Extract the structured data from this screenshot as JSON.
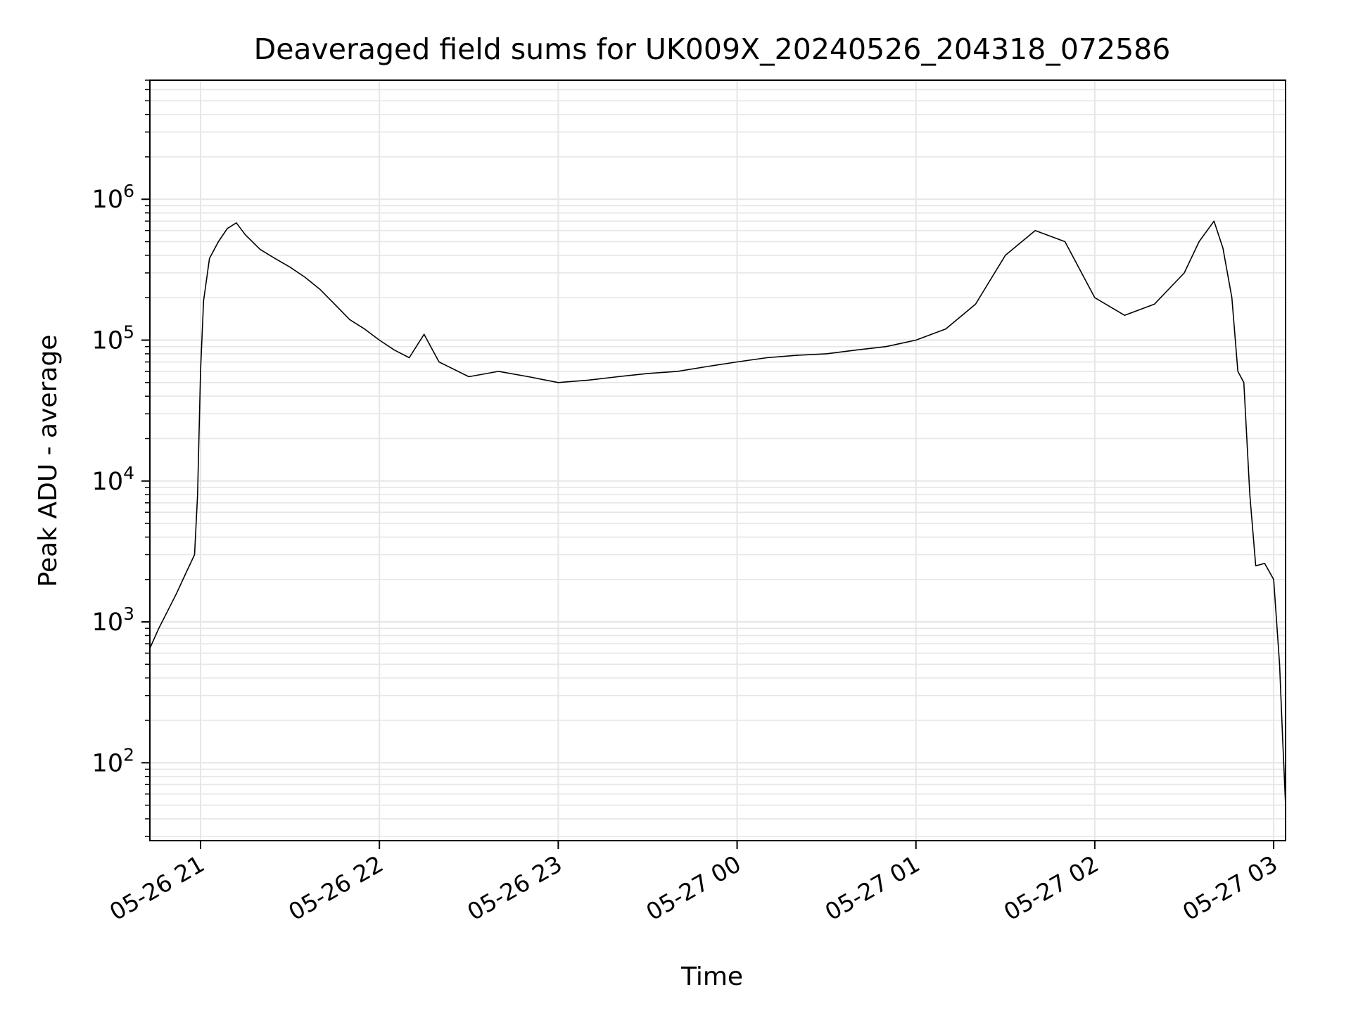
{
  "chart_data": {
    "type": "line",
    "title": "Deaveraged field sums for UK009X_20240526_204318_072586",
    "xlabel": "Time",
    "ylabel": "Peak ADU - average",
    "y_scale": "log",
    "ylim": [
      28,
      7000000
    ],
    "xlim": [
      "2024-05-26 20:43",
      "2024-05-27 03:04"
    ],
    "x_ticks": [
      {
        "value": "2024-05-26 21:00",
        "label": "05-26 21"
      },
      {
        "value": "2024-05-26 22:00",
        "label": "05-26 22"
      },
      {
        "value": "2024-05-26 23:00",
        "label": "05-26 23"
      },
      {
        "value": "2024-05-27 00:00",
        "label": "05-27 00"
      },
      {
        "value": "2024-05-27 01:00",
        "label": "05-27 01"
      },
      {
        "value": "2024-05-27 02:00",
        "label": "05-27 02"
      },
      {
        "value": "2024-05-27 03:00",
        "label": "05-27 03"
      }
    ],
    "y_ticks": [
      {
        "value": 100,
        "base": "10",
        "exp": "2"
      },
      {
        "value": 1000,
        "base": "10",
        "exp": "3"
      },
      {
        "value": 10000,
        "base": "10",
        "exp": "4"
      },
      {
        "value": 100000,
        "base": "10",
        "exp": "5"
      },
      {
        "value": 1000000,
        "base": "10",
        "exp": "6"
      }
    ],
    "grid": true,
    "line_color": "#000000",
    "grid_color": "#e6e6e6",
    "series": [
      {
        "points": [
          [
            "2024-05-26 20:43",
            650
          ],
          [
            "2024-05-26 20:46",
            900
          ],
          [
            "2024-05-26 20:49",
            1200
          ],
          [
            "2024-05-26 20:52",
            1600
          ],
          [
            "2024-05-26 20:55",
            2200
          ],
          [
            "2024-05-26 20:58",
            3000
          ],
          [
            "2024-05-26 20:59",
            8000
          ],
          [
            "2024-05-26 21:00",
            60000
          ],
          [
            "2024-05-26 21:01",
            190000
          ],
          [
            "2024-05-26 21:03",
            380000
          ],
          [
            "2024-05-26 21:06",
            500000
          ],
          [
            "2024-05-26 21:09",
            620000
          ],
          [
            "2024-05-26 21:12",
            680000
          ],
          [
            "2024-05-26 21:15",
            560000
          ],
          [
            "2024-05-26 21:20",
            440000
          ],
          [
            "2024-05-26 21:25",
            380000
          ],
          [
            "2024-05-26 21:30",
            330000
          ],
          [
            "2024-05-26 21:35",
            280000
          ],
          [
            "2024-05-26 21:40",
            230000
          ],
          [
            "2024-05-26 21:45",
            180000
          ],
          [
            "2024-05-26 21:50",
            140000
          ],
          [
            "2024-05-26 21:55",
            120000
          ],
          [
            "2024-05-26 22:00",
            100000
          ],
          [
            "2024-05-26 22:05",
            85000
          ],
          [
            "2024-05-26 22:10",
            75000
          ],
          [
            "2024-05-26 22:15",
            110000
          ],
          [
            "2024-05-26 22:20",
            70000
          ],
          [
            "2024-05-26 22:30",
            55000
          ],
          [
            "2024-05-26 22:40",
            60000
          ],
          [
            "2024-05-26 22:50",
            55000
          ],
          [
            "2024-05-26 23:00",
            50000
          ],
          [
            "2024-05-26 23:10",
            52000
          ],
          [
            "2024-05-26 23:20",
            55000
          ],
          [
            "2024-05-26 23:30",
            58000
          ],
          [
            "2024-05-26 23:40",
            60000
          ],
          [
            "2024-05-26 23:50",
            65000
          ],
          [
            "2024-05-27 00:00",
            70000
          ],
          [
            "2024-05-27 00:10",
            75000
          ],
          [
            "2024-05-27 00:20",
            78000
          ],
          [
            "2024-05-27 00:30",
            80000
          ],
          [
            "2024-05-27 00:40",
            85000
          ],
          [
            "2024-05-27 00:50",
            90000
          ],
          [
            "2024-05-27 01:00",
            100000
          ],
          [
            "2024-05-27 01:10",
            120000
          ],
          [
            "2024-05-27 01:20",
            180000
          ],
          [
            "2024-05-27 01:30",
            400000
          ],
          [
            "2024-05-27 01:40",
            600000
          ],
          [
            "2024-05-27 01:50",
            500000
          ],
          [
            "2024-05-27 02:00",
            200000
          ],
          [
            "2024-05-27 02:10",
            150000
          ],
          [
            "2024-05-27 02:20",
            180000
          ],
          [
            "2024-05-27 02:30",
            300000
          ],
          [
            "2024-05-27 02:35",
            500000
          ],
          [
            "2024-05-27 02:40",
            700000
          ],
          [
            "2024-05-27 02:43",
            450000
          ],
          [
            "2024-05-27 02:46",
            200000
          ],
          [
            "2024-05-27 02:48",
            60000
          ],
          [
            "2024-05-27 02:50",
            50000
          ],
          [
            "2024-05-27 02:52",
            8000
          ],
          [
            "2024-05-27 02:54",
            2500
          ],
          [
            "2024-05-27 02:57",
            2600
          ],
          [
            "2024-05-27 03:00",
            2000
          ],
          [
            "2024-05-27 03:02",
            500
          ],
          [
            "2024-05-27 03:03",
            150
          ],
          [
            "2024-05-27 03:04",
            50
          ]
        ]
      }
    ]
  }
}
